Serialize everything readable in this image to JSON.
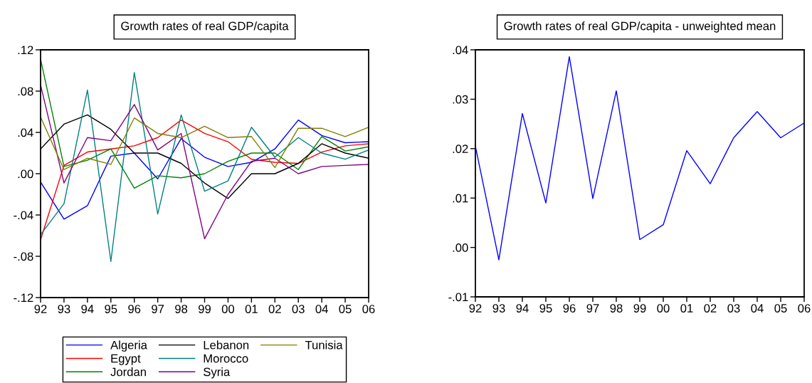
{
  "chart_data": [
    {
      "type": "line",
      "title": "Growth rates of real GDP/capita",
      "categories": [
        "92",
        "93",
        "94",
        "95",
        "96",
        "97",
        "98",
        "99",
        "00",
        "01",
        "02",
        "03",
        "04",
        "05",
        "06"
      ],
      "ylim": [
        -0.12,
        0.12
      ],
      "yticks": [
        {
          "value": -0.12,
          "label": "-.12"
        },
        {
          "value": -0.08,
          "label": "-.08"
        },
        {
          "value": -0.04,
          "label": "-.04"
        },
        {
          "value": 0.0,
          "label": ".00"
        },
        {
          "value": 0.04,
          "label": ".04"
        },
        {
          "value": 0.08,
          "label": ".08"
        },
        {
          "value": 0.12,
          "label": ".12"
        }
      ],
      "legend": "bottom",
      "series": [
        {
          "name": "Algeria",
          "color": "#0000ff",
          "values": [
            -0.008,
            -0.044,
            -0.031,
            0.017,
            0.02,
            -0.005,
            0.034,
            0.016,
            0.007,
            0.011,
            0.024,
            0.052,
            0.037,
            0.03,
            0.031
          ]
        },
        {
          "name": "Egypt",
          "color": "#ff0000",
          "values": [
            -0.064,
            0.008,
            0.021,
            0.024,
            0.027,
            0.035,
            0.052,
            0.039,
            0.031,
            0.014,
            0.011,
            0.01,
            0.021,
            0.027,
            0.029
          ]
        },
        {
          "name": "Jordan",
          "color": "#008000",
          "values": [
            0.111,
            0.007,
            0.013,
            0.024,
            -0.014,
            -0.002,
            -0.004,
            0.0,
            0.012,
            0.02,
            0.02,
            0.004,
            0.036,
            0.022,
            0.026
          ]
        },
        {
          "name": "Lebanon",
          "color": "#000000",
          "values": [
            0.024,
            0.048,
            0.057,
            0.043,
            0.02,
            0.02,
            0.01,
            -0.009,
            -0.024,
            0.0,
            0.0,
            0.01,
            0.029,
            0.02,
            0.015
          ]
        },
        {
          "name": "Morocco",
          "color": "#008080",
          "values": [
            -0.059,
            -0.029,
            0.081,
            -0.085,
            0.098,
            -0.039,
            0.057,
            -0.017,
            -0.007,
            0.045,
            0.016,
            0.035,
            0.02,
            0.014,
            0.023
          ]
        },
        {
          "name": "Syria",
          "color": "#800080",
          "values": [
            0.086,
            -0.009,
            0.035,
            0.032,
            0.067,
            0.023,
            0.039,
            -0.063,
            -0.02,
            0.012,
            0.015,
            0.0,
            0.007,
            0.008,
            0.009
          ]
        },
        {
          "name": "Tunisia",
          "color": "#808000",
          "values": [
            0.055,
            0.004,
            0.015,
            0.009,
            0.054,
            0.039,
            0.035,
            0.046,
            0.035,
            0.036,
            0.006,
            0.044,
            0.044,
            0.036,
            0.045
          ]
        }
      ]
    },
    {
      "type": "line",
      "title": "Growth rates of real GDP/capita - unweighted mean",
      "categories": [
        "92",
        "93",
        "94",
        "95",
        "96",
        "97",
        "98",
        "99",
        "00",
        "01",
        "02",
        "03",
        "04",
        "05",
        "06"
      ],
      "ylim": [
        -0.01,
        0.04
      ],
      "yticks": [
        {
          "value": -0.01,
          "label": "-.01"
        },
        {
          "value": 0.0,
          "label": ".00"
        },
        {
          "value": 0.01,
          "label": ".01"
        },
        {
          "value": 0.02,
          "label": ".02"
        },
        {
          "value": 0.03,
          "label": ".03"
        },
        {
          "value": 0.04,
          "label": ".04"
        }
      ],
      "series": [
        {
          "color": "#0000ff",
          "values": [
            0.0205,
            -0.0025,
            0.0271,
            0.009,
            0.0386,
            0.0099,
            0.0317,
            0.0016,
            0.0046,
            0.0196,
            0.0129,
            0.0222,
            0.0275,
            0.0222,
            0.0252
          ]
        }
      ]
    }
  ]
}
